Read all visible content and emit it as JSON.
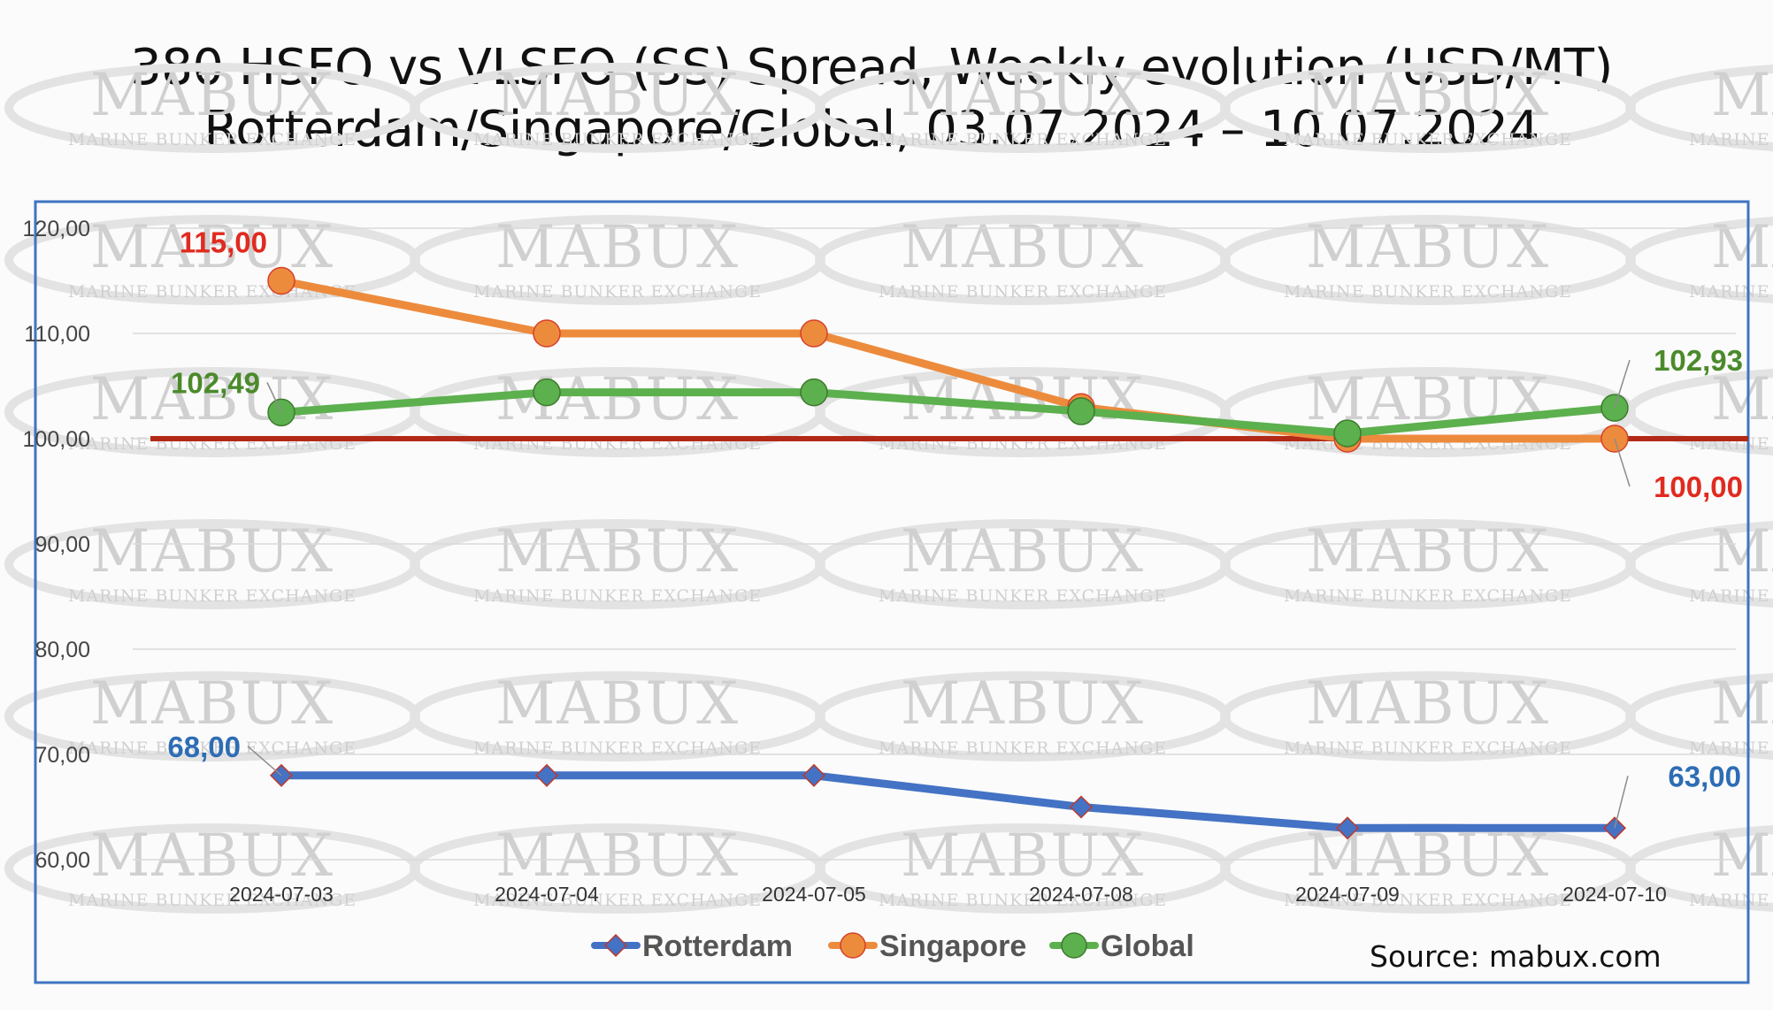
{
  "watermark": {
    "brand": "MABUX",
    "subtitle": "MARINE BUNKER EXCHANGE"
  },
  "source": "Source: mabux.com",
  "colors": {
    "rotterdam": "#4472c4",
    "singapore": "#ed8b3d",
    "global": "#5cb04e",
    "baseline": "#b22a17",
    "frame": "#3f74c2",
    "label_rotterdam": "#2e6db5",
    "label_singapore": "#e02b20",
    "label_global": "#4b8a2b"
  },
  "chart_data": {
    "type": "line",
    "title": "380 HSFO vs VLSFO (SS) Spread, Weekly evolution (USD/MT)",
    "subtitle": "Rotterdam/Singapore/Global, 03.07.2024 – 10.07.2024",
    "categories": [
      "2024-07-03",
      "2024-07-04",
      "2024-07-05",
      "2024-07-08",
      "2024-07-09",
      "2024-07-10"
    ],
    "ylim": [
      60,
      120
    ],
    "yticks": [
      "60,00",
      "70,00",
      "80,00",
      "90,00",
      "100,00",
      "110,00",
      "120,00"
    ],
    "grid": true,
    "legend_position": "bottom",
    "reference_line": 100,
    "series": [
      {
        "name": "Rotterdam",
        "marker": "diamond",
        "values": [
          68,
          68,
          68,
          65,
          63,
          63
        ]
      },
      {
        "name": "Singapore",
        "marker": "circle",
        "values": [
          115,
          110,
          110,
          103,
          100,
          100
        ]
      },
      {
        "name": "Global",
        "marker": "circle",
        "values": [
          102.49,
          104.4,
          104.4,
          102.6,
          100.5,
          102.93
        ]
      }
    ],
    "annotations": [
      {
        "series": "Singapore",
        "index": 0,
        "text": "115,00"
      },
      {
        "series": "Singapore",
        "index": 5,
        "text": "100,00"
      },
      {
        "series": "Global",
        "index": 0,
        "text": "102,49"
      },
      {
        "series": "Global",
        "index": 5,
        "text": "102,93"
      },
      {
        "series": "Rotterdam",
        "index": 0,
        "text": "68,00"
      },
      {
        "series": "Rotterdam",
        "index": 5,
        "text": "63,00"
      }
    ]
  }
}
